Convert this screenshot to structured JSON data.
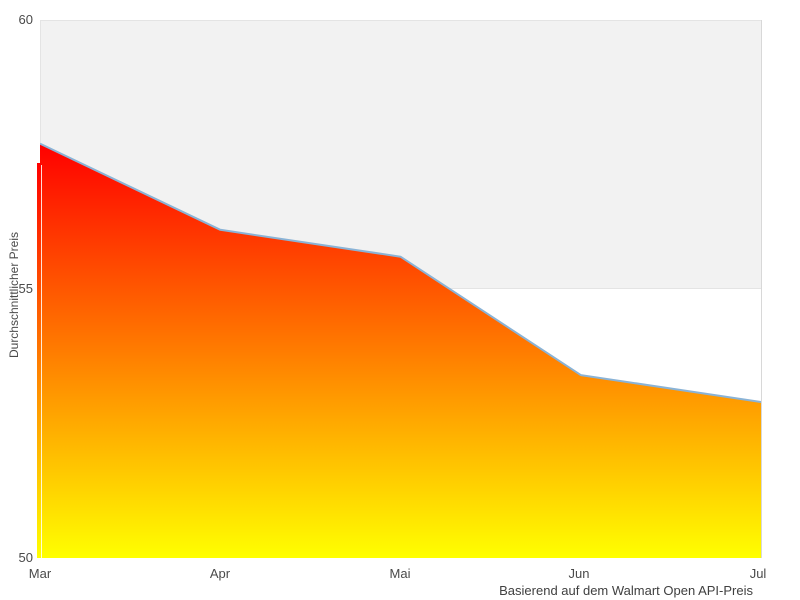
{
  "chart_data": {
    "type": "area",
    "categories": [
      "Mar",
      "Apr",
      "Mai",
      "Jun",
      "Jul"
    ],
    "values": [
      57.7,
      56.1,
      55.6,
      53.4,
      52.9
    ],
    "series_name": "Durchschnittlicher Preis",
    "title": "",
    "xlabel": "",
    "ylabel": "Durchschnittlicher Preis",
    "caption": "Basierend auf dem Walmart Open API-Preis",
    "ylim": [
      50,
      60
    ],
    "yticks": [
      {
        "value": 60,
        "label": "60"
      },
      {
        "value": 55,
        "label": "55"
      },
      {
        "value": 50,
        "label": "50"
      }
    ],
    "plot_band": {
      "from": 55,
      "to": 60,
      "color": "#f2f2f2"
    },
    "legend": "none",
    "grid": "band-edges-only",
    "colors": {
      "line": "#8ab3d6",
      "gradient": [
        "#ff0000",
        "#ff7c00",
        "#ffff00"
      ],
      "band": "#f2f2f2",
      "grid_line": "#e4e4e4",
      "plot_border": "#d8d8d8",
      "text": "#4a4a4a"
    }
  }
}
